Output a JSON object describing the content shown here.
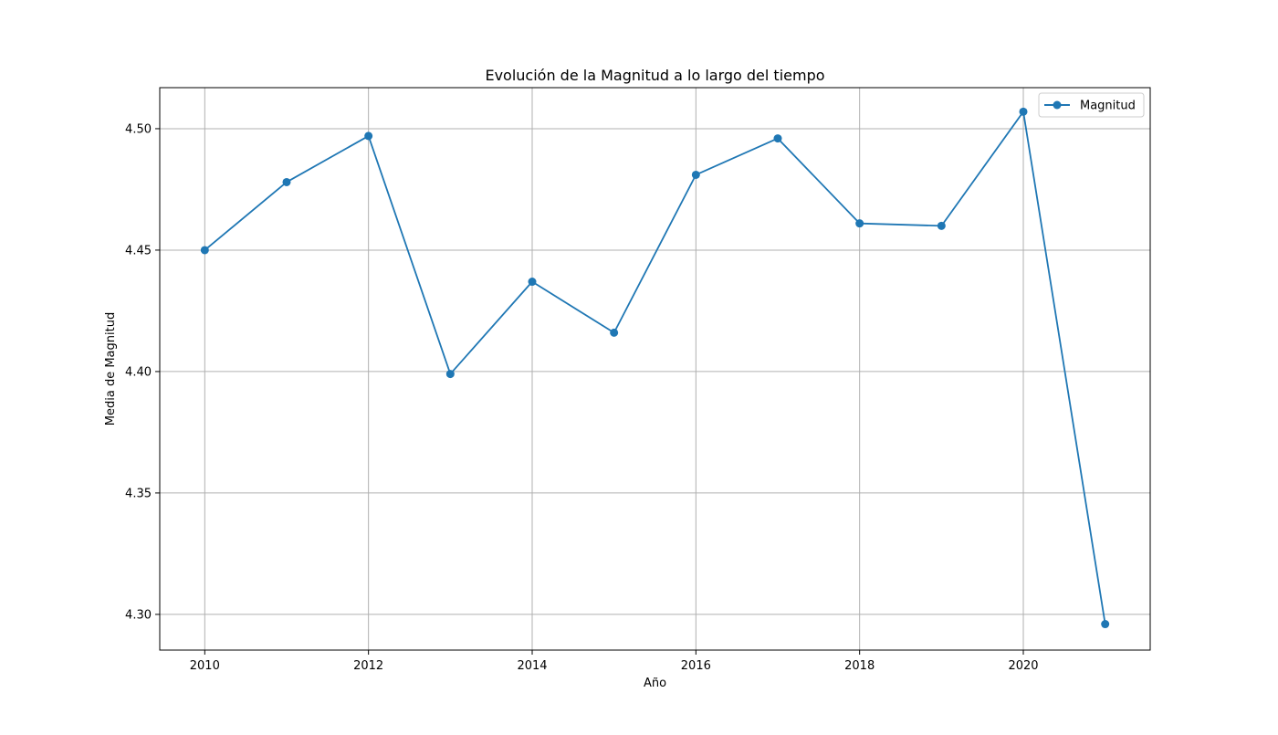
{
  "chart_data": {
    "type": "line",
    "title": "Evolución de la Magnitud a lo largo del tiempo",
    "xlabel": "Año",
    "ylabel": "Media de Magnitud",
    "xlim": [
      2009.45,
      2021.55
    ],
    "ylim": [
      4.2853,
      4.5169
    ],
    "xticks": [
      2010,
      2012,
      2014,
      2016,
      2018,
      2020
    ],
    "xtick_labels": [
      "2010",
      "2012",
      "2014",
      "2016",
      "2018",
      "2020"
    ],
    "yticks": [
      4.3,
      4.35,
      4.4,
      4.45,
      4.5
    ],
    "ytick_labels": [
      "4.30",
      "4.35",
      "4.40",
      "4.45",
      "4.50"
    ],
    "grid": true,
    "legend_position": "top-right",
    "colors": {
      "series": "#1f77b4",
      "grid": "#b0b0b0",
      "axis": "#000000"
    },
    "series": [
      {
        "name": "Magnitud",
        "marker": "circle",
        "x": [
          2010,
          2011,
          2012,
          2013,
          2014,
          2015,
          2016,
          2017,
          2018,
          2019,
          2020,
          2021
        ],
        "y": [
          4.45,
          4.478,
          4.497,
          4.399,
          4.437,
          4.416,
          4.481,
          4.496,
          4.461,
          4.46,
          4.507,
          4.296
        ]
      }
    ]
  }
}
